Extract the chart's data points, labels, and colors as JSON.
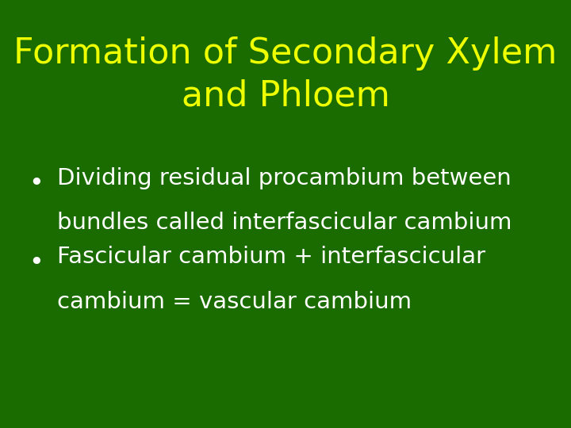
{
  "background_color": "#1a6b00",
  "title_line1": "Formation of Secondary Xylem",
  "title_line2": "and Phloem",
  "title_color": "#eeff00",
  "title_fontsize": 32,
  "bullet_color": "#ffffff",
  "bullet_fontsize": 21,
  "bullet1_line1": "Dividing residual procambium between",
  "bullet1_line2": "bundles called interfascicular cambium",
  "bullet2_line1": "Fascicular cambium + interfascicular",
  "bullet2_line2": "cambium = vascular cambium",
  "fig_width": 7.2,
  "fig_height": 5.4,
  "dpi": 100
}
